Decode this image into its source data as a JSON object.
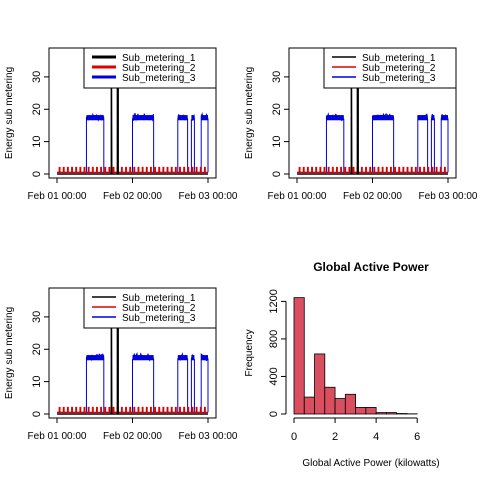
{
  "chart_data": [
    {
      "type": "line",
      "panel": "top-left",
      "ylabel": "Energy sub metering",
      "xlim_days": [
        0,
        2
      ],
      "ylim": [
        0,
        38
      ],
      "x_ticks": [
        "Feb 01 00:00",
        "Feb 02 00:00",
        "Feb 03 00:00"
      ],
      "y_ticks": [
        0,
        10,
        20,
        30
      ],
      "legend": {
        "position": "top-right",
        "boxed": true,
        "thick_lines": true
      },
      "series": [
        {
          "name": "Sub_metering_1",
          "color": "#000000",
          "values_description": "mostly 0 with spikes near Feb 01 ~18:00 reaching ~38",
          "spikes": [
            {
              "x": 0.72,
              "peak": 38
            },
            {
              "x": 0.8,
              "peak": 30
            }
          ]
        },
        {
          "name": "Sub_metering_2",
          "color": "#dd0000",
          "values_description": "mostly 0-1 with periodic short spikes to ~2",
          "level": 2
        },
        {
          "name": "Sub_metering_3",
          "color": "#0000dd",
          "values_description": "mostly ~0.5, blocks at ~17-18",
          "blocks": [
            [
              0.39,
              0.62
            ],
            [
              1.0,
              1.28
            ],
            [
              1.6,
              1.73
            ],
            [
              1.78,
              1.82
            ],
            [
              1.91,
              2.0
            ]
          ],
          "block_level": 17
        }
      ]
    },
    {
      "type": "line",
      "panel": "top-right",
      "ylabel": "Energy sub metering",
      "xlim_days": [
        0,
        2
      ],
      "ylim": [
        0,
        38
      ],
      "x_ticks": [
        "Feb 01 00:00",
        "Feb 02 00:00",
        "Feb 03 00:00"
      ],
      "y_ticks": [
        0,
        10,
        20,
        30
      ],
      "legend": {
        "position": "top-right",
        "boxed": true,
        "thick_lines": false
      },
      "series": [
        {
          "name": "Sub_metering_1",
          "color": "#000000"
        },
        {
          "name": "Sub_metering_2",
          "color": "#dd0000"
        },
        {
          "name": "Sub_metering_3",
          "color": "#0000dd"
        }
      ]
    },
    {
      "type": "line",
      "panel": "bottom-left",
      "ylabel": "Energy sub metering",
      "xlim_days": [
        0,
        2
      ],
      "ylim": [
        0,
        38
      ],
      "x_ticks": [
        "Feb 01 00:00",
        "Feb 02 00:00",
        "Feb 03 00:00"
      ],
      "y_ticks": [
        0,
        10,
        20,
        30
      ],
      "legend": {
        "position": "top-right",
        "boxed": true,
        "thick_lines": false
      },
      "series": [
        {
          "name": "Sub_metering_1",
          "color": "#000000"
        },
        {
          "name": "Sub_metering_2",
          "color": "#dd0000"
        },
        {
          "name": "Sub_metering_3",
          "color": "#0000dd"
        }
      ]
    },
    {
      "type": "bar",
      "subtype": "histogram",
      "panel": "bottom-right",
      "title": "Global Active Power",
      "xlabel": "Global Active Power (kilowatts)",
      "ylabel": "Frequency",
      "xlim": [
        0,
        7.5
      ],
      "ylim": [
        0,
        1300
      ],
      "x_ticks": [
        0,
        2,
        4,
        6
      ],
      "y_ticks": [
        0,
        400,
        800,
        1200
      ],
      "bar_color": "#d94f5f",
      "bins": [
        {
          "start": 0.0,
          "end": 0.5,
          "count": 1240
        },
        {
          "start": 0.5,
          "end": 1.0,
          "count": 180
        },
        {
          "start": 1.0,
          "end": 1.5,
          "count": 640
        },
        {
          "start": 1.5,
          "end": 2.0,
          "count": 285
        },
        {
          "start": 2.0,
          "end": 2.5,
          "count": 165
        },
        {
          "start": 2.5,
          "end": 3.0,
          "count": 210
        },
        {
          "start": 3.0,
          "end": 3.5,
          "count": 70
        },
        {
          "start": 3.5,
          "end": 4.0,
          "count": 70
        },
        {
          "start": 4.0,
          "end": 4.5,
          "count": 15
        },
        {
          "start": 4.5,
          "end": 5.0,
          "count": 15
        },
        {
          "start": 5.0,
          "end": 5.5,
          "count": 5
        },
        {
          "start": 5.5,
          "end": 6.0,
          "count": 2
        }
      ]
    }
  ]
}
